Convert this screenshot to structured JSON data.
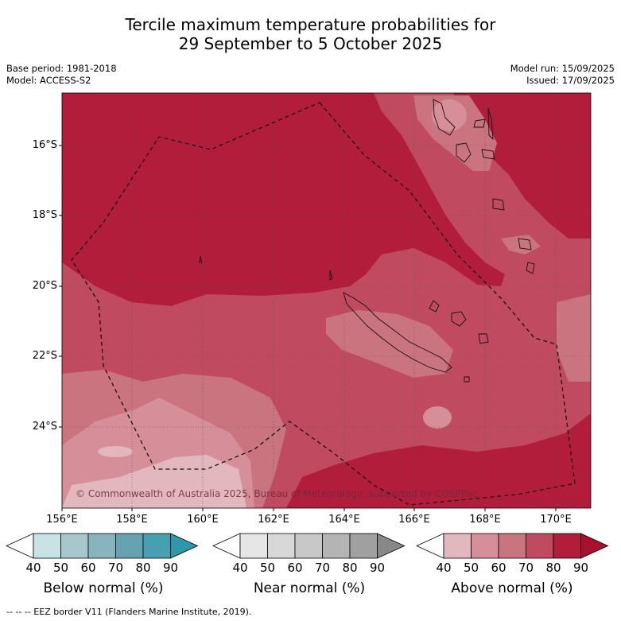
{
  "title": {
    "line1": "Tercile maximum temperature probabilities for",
    "line2": "29 September to 5 October 2025"
  },
  "meta": {
    "base_period": "Base period: 1981-2018",
    "model": "Model: ACCESS-S2",
    "model_run": "Model run: 15/09/2025",
    "issued": "Issued: 17/09/2025"
  },
  "map": {
    "copyright": "© Commonwealth of Australia 2025, Bureau of Meteorology, supported by COSPPac",
    "lat_labels": [
      "16°S",
      "18°S",
      "20°S",
      "22°S",
      "24°S"
    ],
    "lon_labels": [
      "156°E",
      "158°E",
      "160°E",
      "162°E",
      "164°E",
      "166°E",
      "168°E",
      "170°E"
    ],
    "islands": [
      "New Caledonia",
      "Loyalty Islands",
      "Vanuatu",
      "Chesterfield Islands"
    ]
  },
  "colorbars": [
    {
      "label": "Below normal (%)",
      "ticks": [
        "40",
        "50",
        "60",
        "70",
        "80",
        "90"
      ],
      "colors": [
        "#ffffff",
        "#c8e2e6",
        "#a6c8cd",
        "#87b4bd",
        "#65a3b0",
        "#47a0b1",
        "#2f97ab"
      ]
    },
    {
      "label": "Near normal (%)",
      "ticks": [
        "40",
        "50",
        "60",
        "70",
        "80",
        "90"
      ],
      "colors": [
        "#ffffff",
        "#e6e6e6",
        "#d8d8d8",
        "#c8c8c8",
        "#b4b4b4",
        "#a0a0a0",
        "#888888"
      ]
    },
    {
      "label": "Above normal (%)",
      "ticks": [
        "40",
        "50",
        "60",
        "70",
        "80",
        "90"
      ],
      "colors": [
        "#ffffff",
        "#e2b7be",
        "#d68f98",
        "#ca7480",
        "#c04b60",
        "#b31d3c",
        "#a8102c"
      ]
    }
  ],
  "footer": "--  --  -- EEZ border V11 (Flanders Marine Institute, 2019)."
}
